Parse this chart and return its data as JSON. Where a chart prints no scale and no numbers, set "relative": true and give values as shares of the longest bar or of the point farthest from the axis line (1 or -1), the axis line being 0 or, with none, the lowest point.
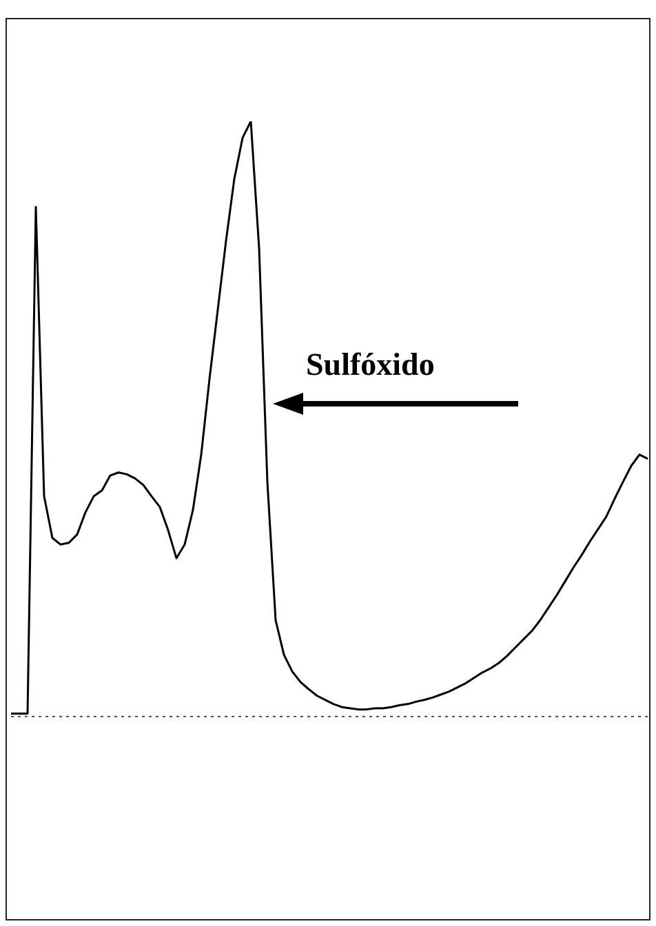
{
  "chart_data": {
    "type": "line",
    "relative": true,
    "color": "#000000",
    "marker": "none",
    "line_style": "solid",
    "legend": false,
    "categories": [
      null,
      null,
      null,
      null,
      null,
      null,
      null,
      null,
      null,
      null,
      null,
      null,
      null,
      null,
      null,
      null,
      null,
      null,
      null,
      null,
      null,
      null,
      null,
      null,
      null,
      null,
      null,
      null,
      null,
      null,
      null,
      null,
      null,
      null,
      null,
      null,
      null,
      null,
      null,
      null,
      null,
      null,
      null,
      null,
      null,
      null,
      null,
      null,
      null,
      null,
      null,
      null,
      null,
      null,
      null,
      null,
      null,
      null,
      null,
      null,
      null,
      null,
      null,
      null,
      null,
      null,
      null,
      null,
      null,
      null,
      null,
      null,
      null,
      null,
      null,
      null,
      null,
      null
    ],
    "values": [
      0.005,
      0.005,
      0.005,
      0.856,
      0.37,
      0.3,
      0.289,
      0.292,
      0.306,
      0.343,
      0.37,
      0.38,
      0.405,
      0.41,
      0.407,
      0.4,
      0.389,
      0.37,
      0.352,
      0.313,
      0.266,
      0.289,
      0.347,
      0.44,
      0.567,
      0.683,
      0.799,
      0.903,
      0.972,
      1,
      0.787,
      0.394,
      0.162,
      0.104,
      0.076,
      0.058,
      0.046,
      0.035,
      0.028,
      0.021,
      0.016,
      0.014,
      0.012,
      0.012,
      0.014,
      0.014,
      0.016,
      0.019,
      0.021,
      0.025,
      0.028,
      0.032,
      0.037,
      0.042,
      0.049,
      0.056,
      0.065,
      0.074,
      0.081,
      0.09,
      0.102,
      0.116,
      0.13,
      0.144,
      0.162,
      0.183,
      0.204,
      0.227,
      0.25,
      0.271,
      0.294,
      0.315,
      0.336,
      0.366,
      0.394,
      0.421,
      0.44,
      0.433
    ],
    "ref_lines": [
      {
        "axis": "y",
        "value": 0,
        "line_style": "dotted",
        "color": "#555555"
      }
    ],
    "annotations": [
      "Sulfóxido"
    ]
  }
}
